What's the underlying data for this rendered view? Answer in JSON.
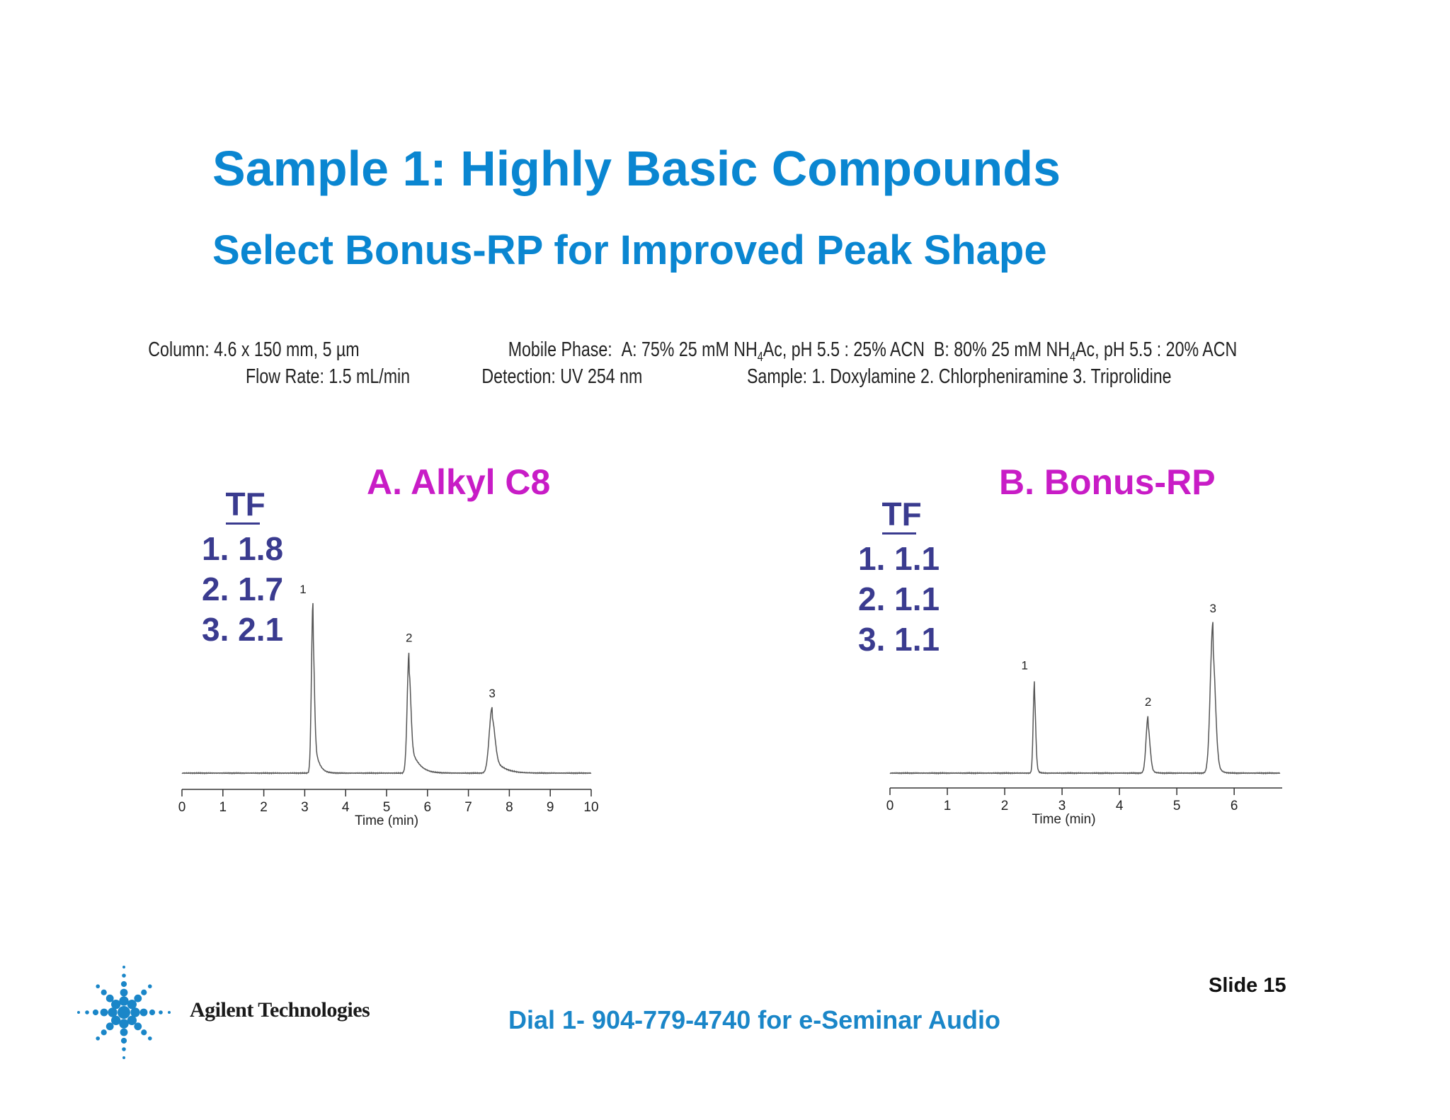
{
  "slide": {
    "title": "Sample 1: Highly Basic Compounds",
    "subtitle": "Select Bonus-RP for Improved Peak Shape",
    "conditions": {
      "column": "Column: 4.6 x 150 mm, 5 µm",
      "mobile_phase_label": "Mobile Phase:",
      "mobile_phase_a_pre": "A: 75% 25 mM NH",
      "mobile_phase_a_sub": "4",
      "mobile_phase_a_post": "Ac, pH 5.5 : 25% ACN",
      "mobile_phase_b_pre": "B: 80% 25 mM NH",
      "mobile_phase_b_sub": "4",
      "mobile_phase_b_post": "Ac, pH 5.5 : 20% ACN",
      "flow_rate": "Flow Rate: 1.5 mL/min",
      "detection": "Detection: UV 254 nm",
      "sample": "Sample: 1. Doxylamine 2. Chlorpheniramine 3. Triprolidine"
    },
    "footer": {
      "audio": "Dial 1- 904-779-4740 for e-Seminar Audio",
      "slide_number": "Slide 15",
      "brand": "Agilent Technologies"
    },
    "colors": {
      "title": "#0a86d1",
      "panel_title": "#c81cc6",
      "tf_text": "#3a3b8f",
      "trace": "#555555"
    }
  },
  "chart_data": [
    {
      "type": "line",
      "title": "A. Alkyl C8",
      "xlabel": "Time (min)",
      "ylabel": "",
      "xlim": [
        0,
        10
      ],
      "xticks": [
        0,
        1,
        2,
        3,
        4,
        5,
        6,
        7,
        8,
        9,
        10
      ],
      "tf_header": "TF",
      "tf_values": [
        "1. 1.8",
        "2. 1.7",
        "3. 2.1"
      ],
      "peaks": [
        {
          "label": "1",
          "time": 3.2,
          "height": 0.98,
          "width": 0.035,
          "tail": 0.09
        },
        {
          "label": "2",
          "time": 5.55,
          "height": 0.7,
          "width": 0.045,
          "tail": 0.16
        },
        {
          "label": "3",
          "time": 7.58,
          "height": 0.38,
          "width": 0.07,
          "tail": 0.2
        }
      ]
    },
    {
      "type": "line",
      "title": "B. Bonus-RP",
      "xlabel": "Time (min)",
      "ylabel": "",
      "xlim": [
        0,
        6.8
      ],
      "xticks": [
        0,
        1,
        2,
        3,
        4,
        5,
        6
      ],
      "tf_header": "TF",
      "tf_values": [
        "1. 1.1",
        "2. 1.1",
        "3. 1.1"
      ],
      "peaks": [
        {
          "label": "1",
          "time": 2.52,
          "height": 0.54,
          "width": 0.022,
          "tail": 0.025
        },
        {
          "label": "2",
          "time": 4.5,
          "height": 0.33,
          "width": 0.035,
          "tail": 0.04
        },
        {
          "label": "3",
          "time": 5.63,
          "height": 0.87,
          "width": 0.045,
          "tail": 0.05
        }
      ]
    }
  ]
}
